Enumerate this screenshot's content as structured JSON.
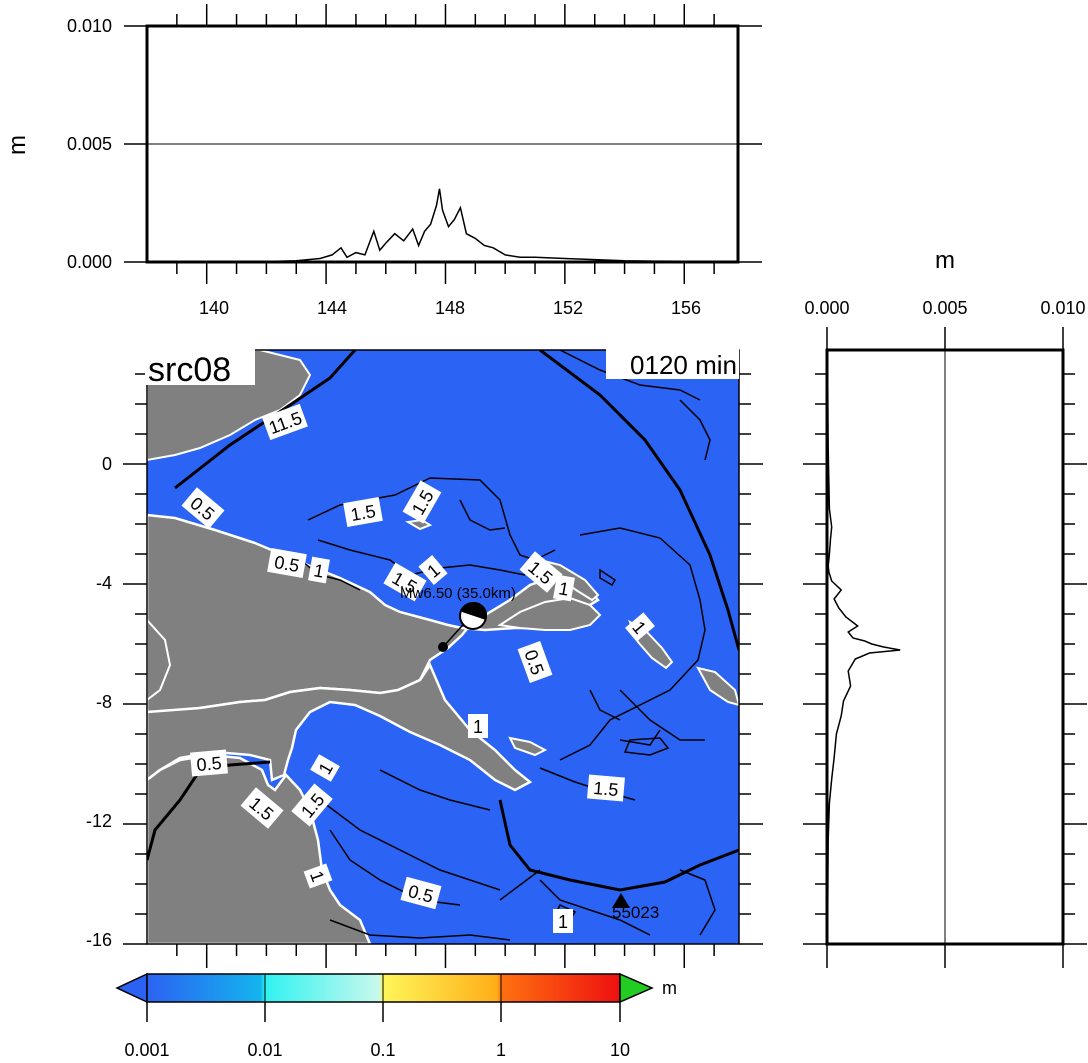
{
  "colors": {
    "ocean": "#2b63f5",
    "land": "#808080",
    "coastline": "#ffffff",
    "contour": "#000000"
  },
  "top_panel": {
    "y_unit": "m",
    "y_ticks": [
      "0.000",
      "0.005",
      "0.010"
    ],
    "x_ticks": [
      "140",
      "144",
      "148",
      "152",
      "156"
    ]
  },
  "right_panel": {
    "x_unit": "m",
    "x_ticks": [
      "0.000",
      "0.005",
      "0.010"
    ]
  },
  "map": {
    "source_label": "src08",
    "time_label": "0120 min",
    "y_ticks": [
      "0",
      "-4",
      "-8",
      "-12",
      "-16"
    ],
    "quake_label": "Mw6.50 (35.0km)",
    "station_label": "55023",
    "contour_labels": [
      "11.5",
      "0.5",
      "1.5",
      "1.5",
      "0.5",
      "1",
      "1.5",
      "1",
      "1.5",
      "1",
      "0.5",
      "1",
      "1",
      "1.5",
      "0.5",
      "1",
      "1.5",
      "1.5",
      "1",
      "0.5",
      "1"
    ]
  },
  "colorbar": {
    "unit": "m",
    "tick_labels": [
      "0.001",
      "0.01",
      "0.1",
      "1",
      "10"
    ],
    "stops": [
      "#2c62f2",
      "#1aa8ee",
      "#3af6f0",
      "#b8f8ee",
      "#fff75a",
      "#ffb01a",
      "#ff6a10",
      "#f01010"
    ],
    "over_color": "#22cc22",
    "under_color": "#2c62f2"
  },
  "chart_data": [
    {
      "type": "line",
      "title": "",
      "xlabel": "",
      "ylabel": "m",
      "xlim": [
        138,
        157.8
      ],
      "ylim": [
        0,
        0.01
      ],
      "x": [
        138,
        140,
        142,
        143,
        143.8,
        144.2,
        144.5,
        144.7,
        145,
        145.3,
        145.6,
        145.8,
        146,
        146.3,
        146.6,
        146.9,
        147.1,
        147.3,
        147.5,
        147.7,
        147.8,
        147.9,
        148.1,
        148.3,
        148.5,
        148.7,
        149,
        149.3,
        149.6,
        150,
        150.5,
        151,
        152,
        153,
        154,
        155,
        156,
        157.8
      ],
      "y": [
        0.0,
        0.0,
        2e-05,
        5e-05,
        0.00015,
        0.0003,
        0.0006,
        0.0002,
        0.0004,
        0.0003,
        0.0013,
        0.0005,
        0.0008,
        0.0012,
        0.0009,
        0.0014,
        0.0007,
        0.0013,
        0.0016,
        0.0024,
        0.0031,
        0.0022,
        0.0015,
        0.0018,
        0.0023,
        0.0012,
        0.001,
        0.0007,
        0.0006,
        0.0003,
        0.0002,
        0.0002,
        0.00015,
        0.0001,
        5e-05,
        4e-05,
        3e-05,
        2e-05
      ]
    },
    {
      "type": "line",
      "title": "",
      "xlabel": "m",
      "ylabel": "",
      "xlim": [
        0,
        0.01
      ],
      "ylim": [
        -16,
        3.8
      ],
      "x": [
        2e-05,
        5e-05,
        0.0001,
        0.0002,
        0.00015,
        0.0001,
        5e-05,
        8e-05,
        0.0002,
        0.0006,
        0.0003,
        0.0005,
        0.0008,
        0.0013,
        0.0009,
        0.0011,
        0.0016,
        0.0019,
        0.0024,
        0.0031,
        0.0018,
        0.0012,
        0.0009,
        0.001,
        0.0007,
        0.0006,
        0.0004,
        0.0003,
        0.0002,
        0.0001,
        5e-05,
        2e-05
      ],
      "y": [
        3.8,
        0.5,
        -1.5,
        -2.1,
        -2.5,
        -3.0,
        -3.4,
        -3.6,
        -3.9,
        -4.2,
        -4.5,
        -4.8,
        -5.1,
        -5.4,
        -5.6,
        -5.8,
        -5.9,
        -6.0,
        -6.1,
        -6.2,
        -6.3,
        -6.5,
        -6.9,
        -7.4,
        -7.9,
        -8.4,
        -9.0,
        -9.8,
        -10.5,
        -11.3,
        -12.5,
        -16
      ]
    }
  ]
}
